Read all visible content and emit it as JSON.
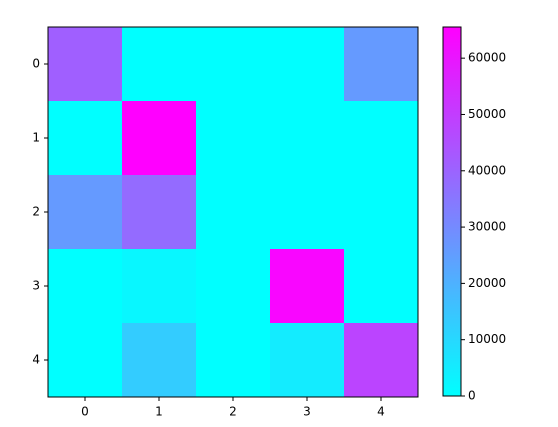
{
  "chart_data": {
    "type": "heatmap",
    "colormap": "cool",
    "z": [
      [
        41000,
        0,
        0,
        0,
        26000
      ],
      [
        0,
        65535,
        0,
        0,
        0
      ],
      [
        26000,
        38000,
        0,
        0,
        0
      ],
      [
        0,
        2000,
        0,
        64000,
        0
      ],
      [
        0,
        13000,
        0,
        5000,
        48000
      ]
    ],
    "xticks": [
      0,
      1,
      2,
      3,
      4
    ],
    "yticks": [
      0,
      1,
      2,
      3,
      4
    ],
    "clim": [
      0,
      65535
    ],
    "cticks": [
      0,
      10000,
      20000,
      30000,
      40000,
      50000,
      60000
    ],
    "colorbar": true
  }
}
